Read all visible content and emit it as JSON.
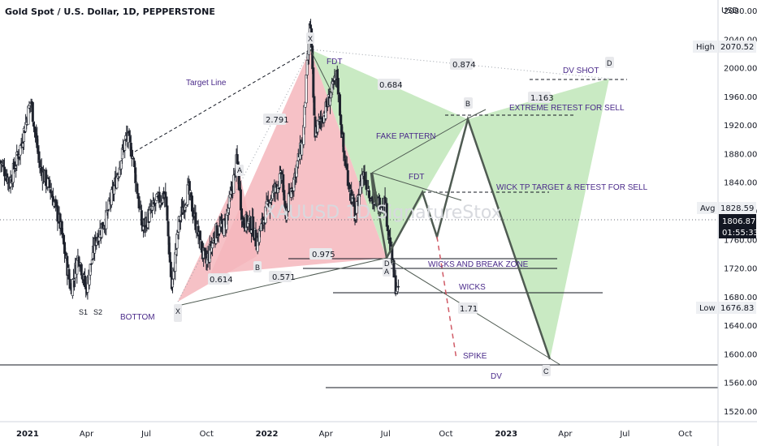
{
  "header": {
    "title": "Gold Spot / U.S. Dollar, 1D, PEPPERSTONE",
    "currency": "USD"
  },
  "watermark": "XAUUSD 1D  SignatureStox",
  "colors": {
    "red_fill": "#f4b6bc",
    "green_fill": "#bfe6b9",
    "candle": "#1e222d",
    "pattern_line": "#4f5b52",
    "dashed_red": "#d05a66",
    "label_purple": "#4a2a8a",
    "price_box": "#131722",
    "tag_bg": "#e8e9ec"
  },
  "chart_data": {
    "type": "candlestick",
    "title": "Gold Spot / U.S. Dollar, 1D, PEPPERSTONE",
    "ylabel": "USD",
    "ylim": [
      1505,
      2095
    ],
    "y_ticks": [
      2080.0,
      2040.0,
      2000.0,
      1960.0,
      1920.0,
      1880.0,
      1840.0,
      1800.0,
      1760.0,
      1720.0,
      1680.0,
      1640.0,
      1600.0,
      1560.0,
      1520.0
    ],
    "y_tick_labels": [
      "2080.00",
      "2040.00",
      "2000.00",
      "1960.00",
      "1920.00",
      "1880.00",
      "1840.00",
      "1800.00",
      "1760.00",
      "1720.00",
      "1680.00",
      "1640.00",
      "1600.00",
      "1560.00",
      "1520.00"
    ],
    "x_domain": [
      "2020-11-20",
      "2023-11-20"
    ],
    "x_ticks": [
      {
        "date": "2021-01-01",
        "label": "2021",
        "bold": true
      },
      {
        "date": "2021-04-01",
        "label": "Apr"
      },
      {
        "date": "2021-07-01",
        "label": "Jul"
      },
      {
        "date": "2021-10-01",
        "label": "Oct"
      },
      {
        "date": "2022-01-01",
        "label": "2022",
        "bold": true
      },
      {
        "date": "2022-04-01",
        "label": "Apr"
      },
      {
        "date": "2022-07-01",
        "label": "Jul"
      },
      {
        "date": "2022-10-01",
        "label": "Oct"
      },
      {
        "date": "2023-01-01",
        "label": "2023",
        "bold": true
      },
      {
        "date": "2023-04-01",
        "label": "Apr"
      },
      {
        "date": "2023-07-01",
        "label": "Jul"
      },
      {
        "date": "2023-10-01",
        "label": "Oct"
      }
    ],
    "price_tags": [
      {
        "kind": "High",
        "value": 2070.52,
        "text": "2070.52"
      },
      {
        "kind": "Avg",
        "value": 1828.59,
        "text": "1828.59"
      },
      {
        "kind": "Low",
        "value": 1676.83,
        "text": "1676.83"
      }
    ],
    "current_price": {
      "value": 1806.87,
      "text": "1806.87",
      "countdown": "01:55:33"
    },
    "price_path": [
      [
        "2020-11-20",
        1870
      ],
      [
        "2020-12-05",
        1840
      ],
      [
        "2020-12-20",
        1885
      ],
      [
        "2021-01-06",
        1955
      ],
      [
        "2021-01-20",
        1860
      ],
      [
        "2021-02-05",
        1830
      ],
      [
        "2021-02-20",
        1780
      ],
      [
        "2021-03-08",
        1690
      ],
      [
        "2021-03-20",
        1740
      ],
      [
        "2021-03-31",
        1688
      ],
      [
        "2021-04-15",
        1760
      ],
      [
        "2021-05-01",
        1790
      ],
      [
        "2021-05-15",
        1840
      ],
      [
        "2021-06-01",
        1905
      ],
      [
        "2021-06-10",
        1880
      ],
      [
        "2021-06-25",
        1775
      ],
      [
        "2021-07-15",
        1810
      ],
      [
        "2021-07-30",
        1825
      ],
      [
        "2021-08-09",
        1690
      ],
      [
        "2021-08-20",
        1785
      ],
      [
        "2021-09-03",
        1830
      ],
      [
        "2021-09-20",
        1760
      ],
      [
        "2021-09-30",
        1725
      ],
      [
        "2021-10-15",
        1770
      ],
      [
        "2021-10-29",
        1780
      ],
      [
        "2021-11-08",
        1825
      ],
      [
        "2021-11-16",
        1870
      ],
      [
        "2021-11-25",
        1785
      ],
      [
        "2021-12-10",
        1780
      ],
      [
        "2021-12-16",
        1755
      ],
      [
        "2022-01-05",
        1815
      ],
      [
        "2022-01-25",
        1850
      ],
      [
        "2022-01-28",
        1790
      ],
      [
        "2022-02-15",
        1860
      ],
      [
        "2022-02-25",
        1900
      ],
      [
        "2022-03-08",
        2070
      ],
      [
        "2022-03-15",
        1910
      ],
      [
        "2022-03-31",
        1940
      ],
      [
        "2022-04-18",
        1990
      ],
      [
        "2022-04-28",
        1880
      ],
      [
        "2022-05-16",
        1790
      ],
      [
        "2022-05-27",
        1855
      ],
      [
        "2022-06-13",
        1810
      ],
      [
        "2022-06-30",
        1812
      ],
      [
        "2022-07-15",
        1700
      ],
      [
        "2022-07-21",
        1681
      ]
    ],
    "pattern_points": [
      {
        "label": "S1",
        "date": "2021-03-08",
        "price": 1676.83
      },
      {
        "label": "S2",
        "date": "2021-03-31",
        "price": 1676.83
      },
      {
        "label": "X",
        "date": "2021-08-09",
        "price": 1680
      },
      {
        "label": "A",
        "date": "2021-11-16",
        "price": 1880
      },
      {
        "label": "B",
        "date": "2021-12-16",
        "price": 1755
      },
      {
        "label": "X",
        "date": "2022-03-08",
        "price": 2070.52
      },
      {
        "label": "D",
        "date": "2022-07-21",
        "price": 1760
      },
      {
        "label": "A",
        "date": "2022-07-21",
        "price": 1745
      },
      {
        "label": "B",
        "date": "2022-12-01",
        "price": 1955
      },
      {
        "label": "C",
        "date": "2023-03-20",
        "price": 1595
      },
      {
        "label": "D",
        "date": "2023-07-20",
        "price": 2020
      }
    ],
    "ratios": [
      "0.614",
      "0.571",
      "2.791",
      "0.975",
      "0.684",
      "0.874",
      "1.163",
      "1.71"
    ],
    "annotations": [
      "Target Line",
      "FDT",
      "FDT",
      "FAKE PATTERN",
      "DV SHOT",
      "EXTREME RETEST FOR SELL",
      "WICK TP TARGET & RETEST FOR SELL",
      "WICKS AND BREAK ZONE",
      "WICKS",
      "SPIKE",
      "DV",
      "BOTTOM"
    ]
  },
  "texts": {
    "tag_high_label": "High",
    "tag_avg_label": "Avg",
    "tag_low_label": "Low",
    "r0614": "0.614",
    "r0571": "0.571",
    "r2791": "2.791",
    "r0975": "0.975",
    "r0684": "0.684",
    "r0874": "0.874",
    "r1163": "1.163",
    "r171": "1.71",
    "target_line": "Target Line",
    "fdt1": "FDT",
    "fdt2": "FDT",
    "fake_pattern": "FAKE PATTERN",
    "dv_shot": "DV SHOT",
    "extreme_retest": "EXTREME RETEST FOR SELL",
    "wick_tp": "WICK TP TARGET & RETEST FOR SELL",
    "wicks_break": "WICKS AND BREAK ZONE",
    "wicks": "WICKS",
    "spike": "SPIKE",
    "dv": "DV",
    "bottom": "BOTTOM",
    "pt_s1": "S1",
    "pt_s2": "S2",
    "pt_x1": "X",
    "pt_a1": "A",
    "pt_b1": "B",
    "pt_x2": "X",
    "pt_d1": "D",
    "pt_a2": "A",
    "pt_b2": "B",
    "pt_c2": "C",
    "pt_d2": "D"
  }
}
